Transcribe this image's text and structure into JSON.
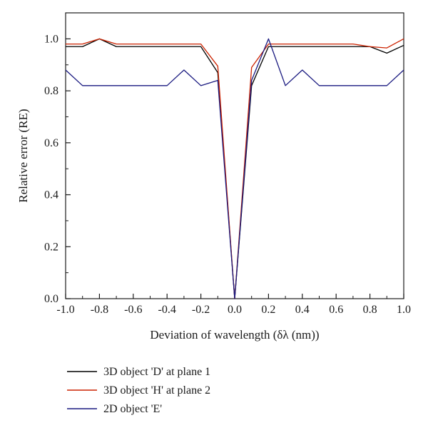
{
  "chart_data": {
    "type": "line",
    "xlabel": "Deviation of wavelength (δλ (nm))",
    "ylabel": "Relative error (RE)",
    "xlim": [
      -1.0,
      1.0
    ],
    "ylim": [
      0.0,
      1.1
    ],
    "x_ticks": [
      "-1.0",
      "-0.8",
      "-0.6",
      "-0.4",
      "-0.2",
      "0.0",
      "0.2",
      "0.4",
      "0.6",
      "0.8",
      "1.0"
    ],
    "y_ticks": [
      "0.0",
      "0.2",
      "0.4",
      "0.6",
      "0.8",
      "1.0"
    ],
    "grid": false,
    "legend_position": "bottom",
    "x": [
      -1.0,
      -0.9,
      -0.8,
      -0.7,
      -0.6,
      -0.5,
      -0.4,
      -0.3,
      -0.2,
      -0.1,
      0.0,
      0.1,
      0.2,
      0.3,
      0.4,
      0.5,
      0.6,
      0.7,
      0.8,
      0.9,
      1.0
    ],
    "series": [
      {
        "name": "3D object 'D' at plane 1",
        "color": "#000000",
        "values": [
          0.97,
          0.97,
          1.0,
          0.97,
          0.97,
          0.97,
          0.97,
          0.97,
          0.97,
          0.87,
          0.0,
          0.82,
          0.97,
          0.97,
          0.97,
          0.97,
          0.97,
          0.97,
          0.97,
          0.945,
          0.975
        ]
      },
      {
        "name": "3D object 'H' at plane 2",
        "color": "#cc2200",
        "values": [
          0.98,
          0.98,
          1.0,
          0.98,
          0.98,
          0.98,
          0.98,
          0.98,
          0.98,
          0.895,
          0.0,
          0.89,
          0.98,
          0.98,
          0.98,
          0.98,
          0.98,
          0.98,
          0.97,
          0.965,
          1.0
        ]
      },
      {
        "name": "2D object 'E'",
        "color": "#1a1a80",
        "values": [
          0.88,
          0.82,
          0.82,
          0.82,
          0.82,
          0.82,
          0.82,
          0.88,
          0.82,
          0.84,
          0.0,
          0.84,
          1.0,
          0.82,
          0.88,
          0.82,
          0.82,
          0.82,
          0.82,
          0.82,
          0.88
        ]
      }
    ]
  }
}
